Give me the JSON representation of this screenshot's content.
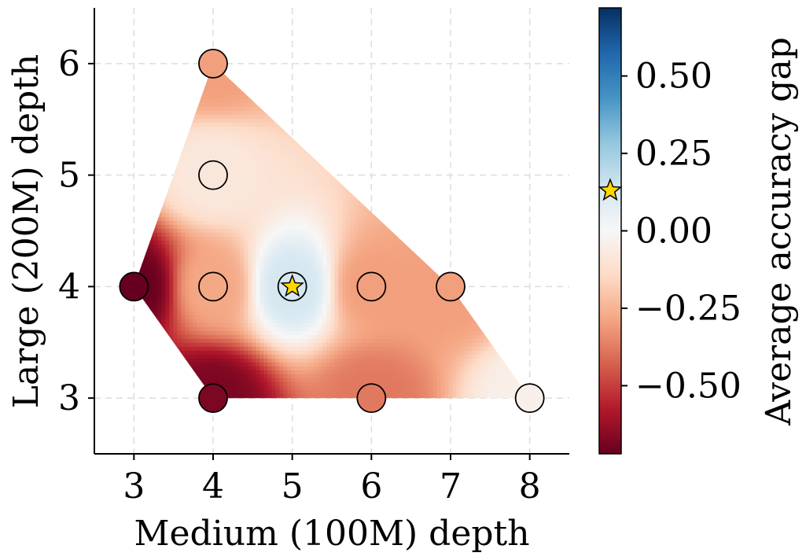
{
  "chart_data": {
    "type": "scatter",
    "title": "",
    "xlabel": "Medium (100M) depth",
    "ylabel": "Large (200M) depth",
    "xlim": [
      2.5,
      8.5
    ],
    "ylim": [
      2.5,
      6.5
    ],
    "x_ticks": [
      3,
      4,
      5,
      6,
      7,
      8
    ],
    "x_tick_labels": [
      "3",
      "4",
      "5",
      "6",
      "7",
      "8"
    ],
    "y_ticks": [
      3,
      4,
      5,
      6
    ],
    "y_tick_labels": [
      "3",
      "4",
      "5",
      "6"
    ],
    "grid": true,
    "interpolated_surface": true,
    "colormap": "RdBu",
    "colorbar": {
      "label": "Average accuracy gap",
      "range": [
        -0.72,
        0.72
      ],
      "ticks": [
        0.5,
        0.25,
        0.0,
        -0.25,
        -0.5
      ],
      "tick_labels": [
        "0.50",
        "0.25",
        "0.00",
        "−0.25",
        "−0.50"
      ],
      "best_marker_value": 0.13
    },
    "points": [
      {
        "x": 3,
        "y": 4,
        "value": -0.72
      },
      {
        "x": 4,
        "y": 3,
        "value": -0.68
      },
      {
        "x": 4,
        "y": 4,
        "value": -0.28
      },
      {
        "x": 4,
        "y": 5,
        "value": -0.08
      },
      {
        "x": 4,
        "y": 6,
        "value": -0.3
      },
      {
        "x": 5,
        "y": 4,
        "value": 0.13,
        "best": true
      },
      {
        "x": 6,
        "y": 3,
        "value": -0.38
      },
      {
        "x": 6,
        "y": 4,
        "value": -0.3
      },
      {
        "x": 7,
        "y": 4,
        "value": -0.3
      },
      {
        "x": 8,
        "y": 3,
        "value": -0.04
      }
    ],
    "surface_hull": [
      [
        3,
        4
      ],
      [
        4,
        3
      ],
      [
        8,
        3
      ],
      [
        7,
        4
      ],
      [
        4,
        6
      ]
    ],
    "colors": {
      "grid": "#dddddd",
      "star_fill": "#ffd700",
      "marker_edge": "#000000"
    }
  }
}
